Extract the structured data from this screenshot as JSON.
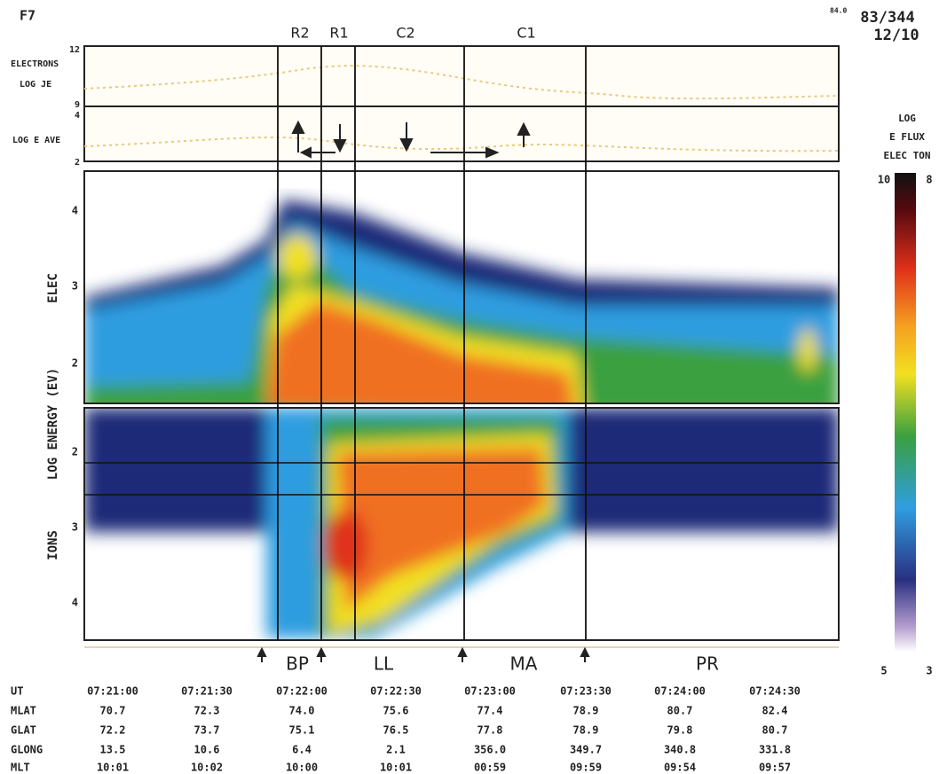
{
  "header": {
    "satellite": "F7",
    "orbit_label": "84.0",
    "day": "83/344",
    "date": "12/10"
  },
  "regions": [
    "R2",
    "R1",
    "C2",
    "C1"
  ],
  "top_panel": {
    "electrons": "ELECTRONS",
    "log_je": "LOG JE",
    "log_e_ave": "LOG E AVE",
    "ticks": [
      "12",
      "9",
      "4",
      "2"
    ]
  },
  "spectrogram": {
    "electron_label": "ELEC",
    "axis_label": "LOG ENERGY (EV)",
    "ion_label": "IONS",
    "electron_ticks": [
      "4",
      "3",
      "2"
    ],
    "ion_ticks": [
      "2",
      "3",
      "4"
    ]
  },
  "colorbar": {
    "title": [
      "LOG",
      "E FLUX",
      "ELEC TON"
    ],
    "top": [
      "10",
      "8"
    ],
    "bottom": [
      "5",
      "3"
    ]
  },
  "boundaries": [
    "BP",
    "LL",
    "MA",
    "PR"
  ],
  "table": {
    "rows": [
      [
        "UT",
        "07:21:00",
        "07:21:30",
        "07:22:00",
        "07:22:30",
        "07:23:00",
        "07:23:30",
        "07:24:00",
        "07:24:30"
      ],
      [
        "MLAT",
        "70.7",
        "72.3",
        "74.0",
        "75.6",
        "77.4",
        "78.9",
        "80.7",
        "82.4"
      ],
      [
        "GLAT",
        "72.2",
        "73.7",
        "75.1",
        "76.5",
        "77.8",
        "78.9",
        "79.8",
        "80.7"
      ],
      [
        "GLONG",
        "13.5",
        "10.6",
        "6.4",
        "2.1",
        "356.0",
        "349.7",
        "340.8",
        "331.8"
      ],
      [
        "MLT",
        "10:01",
        "10:02",
        "10:00",
        "10:01",
        "00:59",
        "09:59",
        "09:54",
        "09:57"
      ]
    ]
  }
}
